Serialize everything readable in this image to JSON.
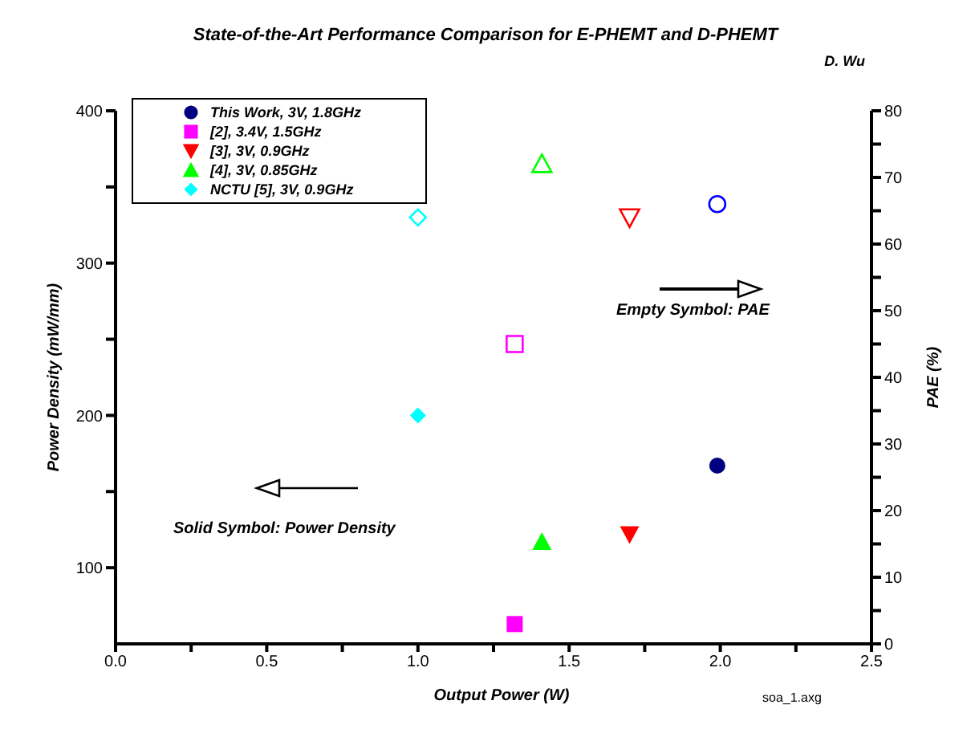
{
  "chart_data": {
    "type": "scatter",
    "title": "State-of-the-Art Performance Comparison for E-PHEMT and D-PHEMT",
    "xlabel": "Output Power (W)",
    "ylabel": "Power Density (mW/mm)",
    "y2label": "PAE (%)",
    "annotations": [
      "D. Wu",
      "Empty Symbol: PAE",
      "Solid Symbol: Power Density",
      "soa_1.axg"
    ],
    "xlim": [
      0,
      2.5
    ],
    "xticks": [
      {
        "value": 0,
        "label": "0.0"
      },
      {
        "value": 0.25,
        "label": null
      },
      0.5,
      {
        "value": 0.75,
        "label": null
      },
      {
        "value": 1,
        "label": "1.0"
      },
      {
        "value": 1.25,
        "label": null
      },
      1.5,
      {
        "value": 1.75,
        "label": null
      },
      {
        "value": 2,
        "label": "2.0"
      },
      {
        "value": 2.25,
        "label": null
      },
      2.5
    ],
    "ylim": [
      50,
      400
    ],
    "yticks": [
      100,
      {
        "value": 150,
        "label": null
      },
      200,
      {
        "value": 250,
        "label": null
      },
      300,
      {
        "value": 350,
        "label": null
      },
      400
    ],
    "y2lim": [
      0,
      80
    ],
    "y2ticks": [
      0,
      {
        "value": 5,
        "label": null
      },
      10,
      {
        "value": 15,
        "label": null
      },
      20,
      {
        "value": 25,
        "label": null
      },
      30,
      {
        "value": 35,
        "label": null
      },
      40,
      {
        "value": 45,
        "label": null
      },
      50,
      {
        "value": 55,
        "label": null
      },
      60,
      {
        "value": 65,
        "label": null
      },
      70,
      {
        "value": 75,
        "label": null
      },
      80
    ],
    "grid": false,
    "legend": "top left",
    "series": [
      {
        "name": "This Work, 3V, 1.8GHz",
        "color": "#000080",
        "marker": "circle",
        "x": [
          1.99
        ],
        "values": [
          167
        ]
      },
      {
        "name": "[2], 3.4V, 1.5GHz",
        "color": "#ff00ff",
        "marker": "square",
        "x": [
          1.32
        ],
        "values": [
          63
        ]
      },
      {
        "name": "[3], 3V, 0.9GHz",
        "color": "#ff0000",
        "marker": "triangle-down",
        "x": [
          1.7
        ],
        "values": [
          122
        ]
      },
      {
        "name": "[4], 3V, 0.85GHz",
        "color": "#00ff00",
        "marker": "triangle",
        "x": [
          1.41
        ],
        "values": [
          117
        ]
      },
      {
        "name": "NCTU [5], 3V, 0.9GHz",
        "color": "#00ffff",
        "marker": "diamond",
        "x": [
          1.0
        ],
        "values": [
          200
        ]
      },
      {
        "color": "#0000ff",
        "marker": "circle",
        "axis": "y2",
        "x": [
          1.99
        ],
        "values": [
          66
        ]
      },
      {
        "color": "#ff00ff",
        "marker": "square",
        "axis": "y2",
        "x": [
          1.32
        ],
        "values": [
          45
        ]
      },
      {
        "color": "#ff0000",
        "marker": "triangle-down",
        "axis": "y2",
        "x": [
          1.7
        ],
        "values": [
          64
        ]
      },
      {
        "color": "#00ff00",
        "marker": "triangle",
        "axis": "y2",
        "x": [
          1.41
        ],
        "values": [
          72
        ]
      },
      {
        "color": "#00ffff",
        "marker": "diamond",
        "axis": "y2",
        "x": [
          1.0
        ],
        "values": [
          64
        ]
      }
    ]
  }
}
